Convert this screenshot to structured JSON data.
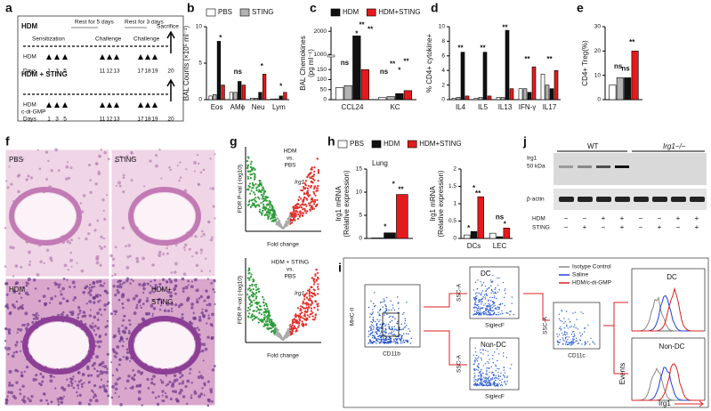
{
  "figure": {
    "panel_labels": [
      "a",
      "b",
      "c",
      "d",
      "e",
      "f",
      "g",
      "h",
      "i",
      "j"
    ],
    "a": {
      "hdm": "HDM",
      "sensitization": "Sensitization",
      "rest1": "Rest for 5 days",
      "challenge": "Challenge",
      "rest2": "Rest for 3 days",
      "sacrifice": "Sacrifice",
      "row_hdm": "HDM",
      "days_label": "Days",
      "days": [
        1,
        3,
        5,
        11,
        12,
        13,
        17,
        18,
        19,
        20
      ],
      "hdm_sting": "HDM + STING",
      "row_cdg": "c-di-GMP"
    },
    "f": {
      "labels": [
        "PBS",
        "STING",
        "HDM"
      ],
      "combo": [
        "HDM+",
        "STING"
      ]
    },
    "g": {
      "top": [
        "HDM",
        "vs.",
        "PBS"
      ],
      "bottom": [
        "HDM + STING",
        "vs.",
        "PBS"
      ],
      "gene": "Irg1",
      "ylabel": "FDR P-val (-log10)",
      "xlabel": "Fold change"
    },
    "j": {
      "wt": "WT",
      "ko": "Irg1−/−",
      "protein": "Irg1",
      "kda": "50 kDa",
      "actin": "β-actin",
      "rows": [
        "HDM",
        "STING"
      ],
      "hdm_signs": [
        "−",
        "−",
        "+",
        "+",
        "−",
        "−",
        "+",
        "+"
      ],
      "sting_signs": [
        "−",
        "+",
        "−",
        "+",
        "−",
        "+",
        "−",
        "+"
      ]
    },
    "i": {
      "mhc": "MHC-II",
      "cd11b": "CD11b",
      "ssc": "SSC-A",
      "dc": "DC",
      "siglecf": "SiglecF",
      "nondc": "Non-DC",
      "cd11c": "CD11c",
      "legend": [
        "Isotype Control",
        "Saline",
        "HDM/c-di-GMP"
      ],
      "events": "Events",
      "irg1": "Irg1"
    }
  },
  "chart_data": [
    {
      "type": "bar",
      "ylabel": [
        "BAL Counts (×10⁵ ml⁻¹)"
      ],
      "categories": [
        "Eos",
        "AMϕ",
        "Neu",
        "Lym"
      ],
      "series": [
        {
          "name": "PBS",
          "color": "#ffffff",
          "values": [
            0.5,
            1,
            0.2,
            0.1
          ]
        },
        {
          "name": "STING",
          "color": "#b3b3b3",
          "values": [
            0.7,
            1,
            0.2,
            0.1
          ]
        },
        {
          "name": "HDM",
          "color": "#111111",
          "values": [
            8,
            2.5,
            1,
            0.5
          ]
        },
        {
          "name": "HDM+STING",
          "color": "#e41a1c",
          "values": [
            2,
            2,
            3.5,
            1
          ]
        }
      ],
      "legend_series": [
        0,
        1
      ],
      "ylim": [
        0,
        10
      ],
      "yticks": [
        0,
        5,
        10
      ],
      "annotations": [
        "*",
        "ns",
        "*",
        "*"
      ]
    },
    {
      "type": "bar",
      "ylabel": [
        "BAL Chemokines",
        "(pg ml⁻¹)"
      ],
      "categories": [
        "CCL24",
        "KC"
      ],
      "series": [
        {
          "name": "PBS",
          "color": "#ffffff",
          "values": [
            60,
            10
          ]
        },
        {
          "name": "STING",
          "color": "#b3b3b3",
          "values": [
            70,
            15
          ]
        },
        {
          "name": "HDM",
          "color": "#111111",
          "values": [
            1800,
            30
          ]
        },
        {
          "name": "HDM+STING",
          "color": "#e41a1c",
          "values": [
            150,
            45
          ]
        }
      ],
      "legend_series": [
        2,
        3
      ],
      "ylim": [
        0,
        2200
      ],
      "broken_axis": [
        200,
        1000
      ],
      "yticks": [
        0,
        50,
        100,
        150,
        1000,
        2000
      ],
      "annotations": [
        "ns",
        "*",
        "**",
        "**",
        "ns",
        "**",
        "*",
        "**"
      ]
    },
    {
      "type": "bar",
      "ylabel": [
        "% CD4+ cytokine+"
      ],
      "categories": [
        "IL4",
        "IL5",
        "IL13",
        "IFN-γ",
        "IL17"
      ],
      "series": [
        {
          "name": "PBS",
          "color": "#ffffff",
          "values": [
            0.2,
            0.2,
            0.3,
            1.5,
            3.5
          ]
        },
        {
          "name": "STING",
          "color": "#b3b3b3",
          "values": [
            0.3,
            0.3,
            0.3,
            1.5,
            2
          ]
        },
        {
          "name": "HDM",
          "color": "#111111",
          "values": [
            6.5,
            6.5,
            9.5,
            1,
            1.5
          ]
        },
        {
          "name": "HDM+STING",
          "color": "#e41a1c",
          "values": [
            0.5,
            0.5,
            1.5,
            4.5,
            4
          ]
        }
      ],
      "ylim": [
        0,
        10
      ],
      "yticks": [
        0,
        2,
        4,
        6,
        8,
        10
      ],
      "annotations": [
        "**",
        "**",
        "**",
        "**",
        "**"
      ]
    },
    {
      "type": "bar",
      "ylabel": [
        "CD4+ Treg(%)"
      ],
      "categories": [
        null
      ],
      "series": [
        {
          "name": "PBS",
          "color": "#ffffff",
          "values": [
            6
          ]
        },
        {
          "name": "STING",
          "color": "#b3b3b3",
          "values": [
            9
          ]
        },
        {
          "name": "HDM",
          "color": "#111111",
          "values": [
            9
          ]
        },
        {
          "name": "HDM+STING",
          "color": "#e41a1c",
          "values": [
            20
          ]
        }
      ],
      "ylim": [
        0,
        30
      ],
      "yticks": [
        0,
        10,
        20,
        30
      ],
      "annotations": [
        "ns",
        "ns",
        "**"
      ]
    },
    {
      "type": "bar",
      "title": "Lung",
      "ylabel": [
        "Irg1 mRNA",
        "(Relative expression)"
      ],
      "categories": [
        null
      ],
      "series": [
        {
          "name": "PBS",
          "color": "#ffffff",
          "values": [
            0.1
          ]
        },
        {
          "name": "HDM",
          "color": "#111111",
          "values": [
            1.2
          ]
        },
        {
          "name": "HDM+STING",
          "color": "#e41a1c",
          "values": [
            9.5
          ]
        }
      ],
      "legend_series": [
        0,
        1,
        2
      ],
      "ylim": [
        0,
        15
      ],
      "yticks": [
        0,
        5,
        10,
        15
      ],
      "annotations": [
        "*",
        "*",
        "**"
      ]
    },
    {
      "type": "bar",
      "ylabel": [
        "Irg1 mRNA",
        "(Relative expression)"
      ],
      "categories": [
        "DCs",
        "LEC"
      ],
      "series": [
        {
          "name": "PBS",
          "color": "#ffffff",
          "values": [
            0.1,
            0.15
          ]
        },
        {
          "name": "HDM",
          "color": "#111111",
          "values": [
            0.2,
            0.05
          ]
        },
        {
          "name": "HDM+STING",
          "color": "#e41a1c",
          "values": [
            1.2,
            0.3
          ]
        }
      ],
      "ylim": [
        0,
        2
      ],
      "yticks": [
        0,
        0.5,
        1,
        1.5,
        2
      ],
      "annotations": [
        "*",
        "*",
        "**",
        "ns",
        "*"
      ]
    }
  ]
}
